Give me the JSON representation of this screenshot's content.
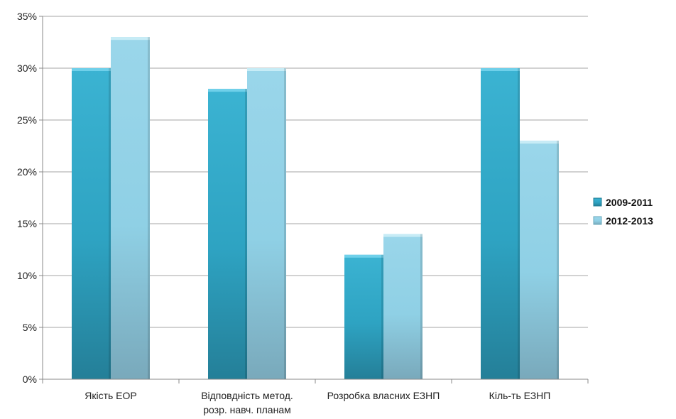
{
  "chart_data": {
    "type": "bar",
    "categories": [
      [
        "Якість ЕОР"
      ],
      [
        "Відповдність метод.",
        "розр. навч. планам"
      ],
      [
        "Розробка власних ЕЗНП"
      ],
      [
        "Кіль-ть ЕЗНП"
      ]
    ],
    "series": [
      {
        "name": "2009-2011",
        "values": [
          30,
          28,
          12,
          30
        ],
        "color": "#2ea3c2"
      },
      {
        "name": "2012-2013",
        "values": [
          33,
          30,
          14,
          23
        ],
        "color": "#8fd0e5"
      }
    ],
    "y_ticks": [
      "0%",
      "5%",
      "10%",
      "15%",
      "20%",
      "25%",
      "30%",
      "35%"
    ],
    "ylim": [
      0,
      35
    ],
    "y_unit": "percent",
    "grid": true,
    "legend_position": "right"
  }
}
